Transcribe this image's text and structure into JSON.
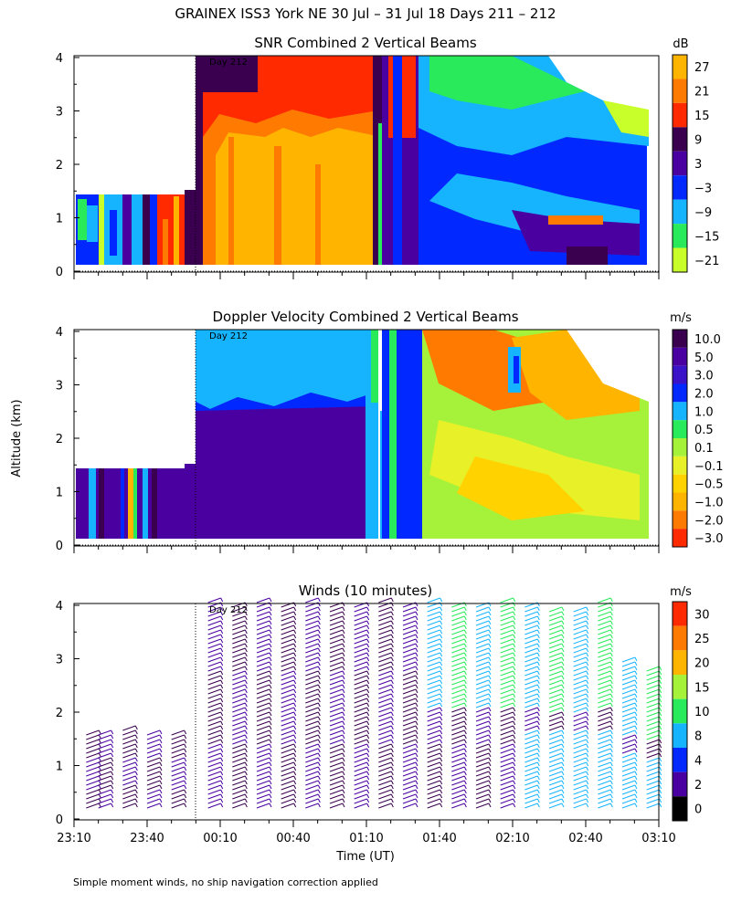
{
  "title": "GRAINEX ISS3 York NE  30 Jul – 31 Jul 18 Days 211 – 212",
  "ylabel": "Altitude (km)",
  "xlabel": "Time (UT)",
  "footnote": "Simple moment winds, no ship navigation correction applied",
  "day_marker": "Day 212",
  "x_ticks": [
    "23:10",
    "23:40",
    "00:10",
    "00:40",
    "01:10",
    "01:40",
    "02:10",
    "02:40",
    "03:10"
  ],
  "y_ticks": [
    "0",
    "1",
    "2",
    "3",
    "4"
  ],
  "panels": {
    "snr": {
      "title": "SNR Combined 2 Vertical Beams",
      "unit": "dB",
      "levels": [
        "27",
        "21",
        "15",
        "9",
        "3",
        "−3",
        "−9",
        "−15",
        "−21"
      ],
      "colors": [
        "#ffb400",
        "#ff7a00",
        "#ff2a00",
        "#3a004f",
        "#4a00a0",
        "#0028ff",
        "#16b4ff",
        "#28ea5a",
        "#c8ff2a"
      ]
    },
    "doppler": {
      "title": "Doppler Velocity Combined 2 Vertical Beams",
      "unit": "m/s",
      "levels": [
        "10.0",
        "5.0",
        "3.0",
        "2.0",
        "1.0",
        "0.5",
        "0.1",
        "−0.1",
        "−0.5",
        "−1.0",
        "−2.0",
        "−3.0"
      ],
      "colors": [
        "#3a004f",
        "#4a00a0",
        "#3a12c8",
        "#0028ff",
        "#16b4ff",
        "#28ea5a",
        "#a6f23a",
        "#e8f028",
        "#ffd200",
        "#ffb400",
        "#ff7a00",
        "#ff2a00"
      ]
    },
    "winds": {
      "title": "Winds (10 minutes)",
      "unit": "m/s",
      "levels": [
        "30",
        "25",
        "20",
        "15",
        "10",
        "8",
        "4",
        "2",
        "0"
      ],
      "colors": [
        "#ff2a00",
        "#ff7a00",
        "#ffb400",
        "#a6f23a",
        "#28ea5a",
        "#16b4ff",
        "#0028ff",
        "#4a00a0",
        "#000000"
      ]
    }
  },
  "chart_data": [
    {
      "type": "heatmap",
      "title": "SNR Combined 2 Vertical Beams",
      "unit": "dB",
      "xlabel": "Time (UT)",
      "ylabel": "Altitude (km)",
      "ylim": [
        0,
        4
      ],
      "x_range": [
        "23:10",
        "03:10"
      ],
      "segments": [
        {
          "start": "23:10",
          "end": "23:35",
          "top_km": 1.4,
          "dominant_db": -9
        },
        {
          "start": "23:35",
          "end": "23:55",
          "top_km": 1.4,
          "dominant_db": 15
        },
        {
          "start": "23:58",
          "end": "01:30",
          "top_km": 4.0,
          "dominant_db": 27
        },
        {
          "start": "01:30",
          "end": "03:00",
          "top_km": 3.8,
          "dominant_db": -3
        }
      ]
    },
    {
      "type": "heatmap",
      "title": "Doppler Velocity Combined 2 Vertical Beams",
      "unit": "m/s",
      "xlabel": "Time (UT)",
      "ylabel": "Altitude (km)",
      "ylim": [
        0,
        4
      ],
      "x_range": [
        "23:10",
        "03:10"
      ],
      "segments": [
        {
          "start": "23:10",
          "end": "23:58",
          "top_km": 1.4,
          "dominant_ms": 5.0
        },
        {
          "start": "23:58",
          "end": "01:30",
          "top_km": 2.6,
          "dominant_ms": 5.0
        },
        {
          "start": "23:58",
          "end": "01:30",
          "bottom_km": 2.6,
          "top_km": 4.0,
          "dominant_ms": 1.0
        },
        {
          "start": "01:30",
          "end": "03:00",
          "top_km": 4.0,
          "dominant_ms": -0.5
        }
      ]
    },
    {
      "type": "scatter",
      "title": "Winds (10 minutes)",
      "unit": "m/s",
      "xlabel": "Time (UT)",
      "ylabel": "Altitude (km)",
      "ylim": [
        0,
        4
      ],
      "profiles": [
        {
          "time": "23:15",
          "top_km": 1.6
        },
        {
          "time": "23:20",
          "top_km": 1.6
        },
        {
          "time": "23:30",
          "top_km": 1.7
        },
        {
          "time": "23:40",
          "top_km": 1.6
        },
        {
          "time": "23:50",
          "top_km": 1.6
        },
        {
          "time": "00:05",
          "top_km": 4.1
        },
        {
          "time": "00:15",
          "top_km": 4.0
        },
        {
          "time": "00:25",
          "top_km": 4.1
        },
        {
          "time": "00:35",
          "top_km": 4.0
        },
        {
          "time": "00:45",
          "top_km": 4.1
        },
        {
          "time": "00:55",
          "top_km": 4.0
        },
        {
          "time": "01:05",
          "top_km": 4.0
        },
        {
          "time": "01:15",
          "top_km": 4.1
        },
        {
          "time": "01:25",
          "top_km": 4.0
        },
        {
          "time": "01:35",
          "top_km": 4.1
        },
        {
          "time": "01:45",
          "top_km": 4.0
        },
        {
          "time": "01:55",
          "top_km": 4.0
        },
        {
          "time": "02:05",
          "top_km": 4.1
        },
        {
          "time": "02:15",
          "top_km": 4.0
        },
        {
          "time": "02:25",
          "top_km": 3.9
        },
        {
          "time": "02:35",
          "top_km": 3.9
        },
        {
          "time": "02:45",
          "top_km": 4.1
        },
        {
          "time": "02:55",
          "top_km": 3.0
        },
        {
          "time": "03:05",
          "top_km": 2.8
        }
      ]
    }
  ]
}
